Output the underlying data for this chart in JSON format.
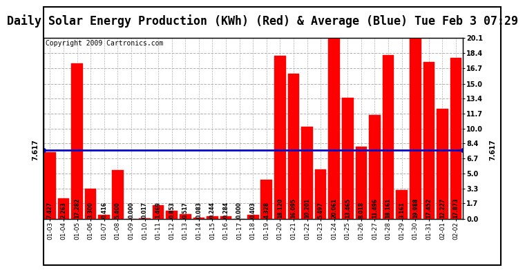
{
  "title": "Daily Solar Energy Production (KWh) (Red) & Average (Blue) Tue Feb 3 07:29",
  "copyright": "Copyright 2009 Cartronics.com",
  "categories": [
    "01-03",
    "01-04",
    "01-05",
    "01-06",
    "01-07",
    "01-08",
    "01-09",
    "01-10",
    "01-11",
    "01-12",
    "01-13",
    "01-14",
    "01-15",
    "01-16",
    "01-17",
    "01-18",
    "01-19",
    "01-20",
    "01-21",
    "01-22",
    "01-23",
    "01-24",
    "01-25",
    "01-26",
    "01-27",
    "01-28",
    "01-29",
    "01-30",
    "01-31",
    "02-01",
    "02-02"
  ],
  "values": [
    7.427,
    2.263,
    17.282,
    3.3,
    0.416,
    5.4,
    0.0,
    0.017,
    1.469,
    0.853,
    0.517,
    0.083,
    0.244,
    0.284,
    0.0,
    0.403,
    4.328,
    18.12,
    16.095,
    10.201,
    5.497,
    20.061,
    13.465,
    8.018,
    11.496,
    18.161,
    3.161,
    19.988,
    17.452,
    12.227,
    17.873
  ],
  "average": 7.617,
  "bar_color": "#ff0000",
  "avg_line_color": "#0000cc",
  "background_color": "#ffffff",
  "plot_bg_color": "#ffffff",
  "grid_color": "#b0b0b0",
  "yticks_right": [
    0.0,
    1.7,
    3.3,
    5.0,
    6.7,
    8.4,
    10.0,
    11.7,
    13.4,
    15.0,
    16.7,
    18.4,
    20.1
  ],
  "ylim": [
    0,
    20.1
  ],
  "title_fontsize": 12,
  "copyright_fontsize": 7,
  "value_fontsize": 5.5,
  "avg_label": "7.617"
}
